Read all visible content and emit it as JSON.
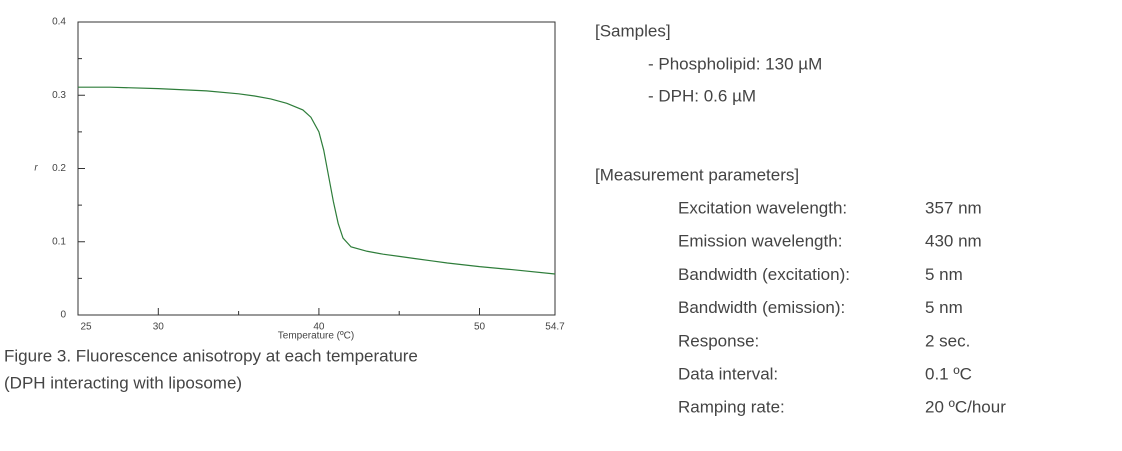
{
  "chart_data": {
    "type": "line",
    "xlabel": "Temperature (ºC)",
    "ylabel": "r",
    "xlim": [
      25,
      54.7
    ],
    "xticks": [
      25,
      30,
      40,
      50,
      54.7
    ],
    "xminorticks": [
      35,
      45
    ],
    "ylim": [
      0,
      0.4
    ],
    "yticks": [
      0,
      0.1,
      0.2,
      0.3,
      0.4
    ],
    "yminorticks": [
      0.05,
      0.15,
      0.25,
      0.35
    ],
    "series": [
      {
        "color": "#2e7d3a",
        "x": [
          25,
          27,
          30,
          33,
          35,
          36,
          37,
          38,
          39,
          39.5,
          40,
          40.3,
          40.6,
          40.9,
          41.2,
          41.5,
          42,
          43,
          44,
          45,
          46,
          47,
          48,
          50,
          52,
          54.7
        ],
        "values": [
          0.311,
          0.311,
          0.309,
          0.306,
          0.302,
          0.299,
          0.295,
          0.289,
          0.28,
          0.27,
          0.25,
          0.225,
          0.19,
          0.155,
          0.125,
          0.105,
          0.093,
          0.087,
          0.083,
          0.08,
          0.077,
          0.074,
          0.071,
          0.066,
          0.062,
          0.056
        ]
      }
    ]
  },
  "caption": [
    "Figure 3. Fluorescence anisotropy at each temperature",
    "(DPH interacting with liposome)"
  ],
  "samples": {
    "title": "[Samples]",
    "items": [
      "- Phospholipid: 130 µM",
      "- DPH:  0.6 µM"
    ]
  },
  "parameters": {
    "title": "[Measurement parameters]",
    "rows": [
      [
        "Excitation wavelength:",
        "357 nm"
      ],
      [
        "Emission wavelength:",
        "430 nm"
      ],
      [
        "Bandwidth (excitation):",
        "5 nm"
      ],
      [
        "Bandwidth (emission):",
        "5 nm"
      ],
      [
        "Response:",
        "2 sec."
      ],
      [
        "Data interval:",
        "0.1 ºC"
      ],
      [
        "Ramping rate:",
        "20 ºC/hour"
      ]
    ]
  }
}
